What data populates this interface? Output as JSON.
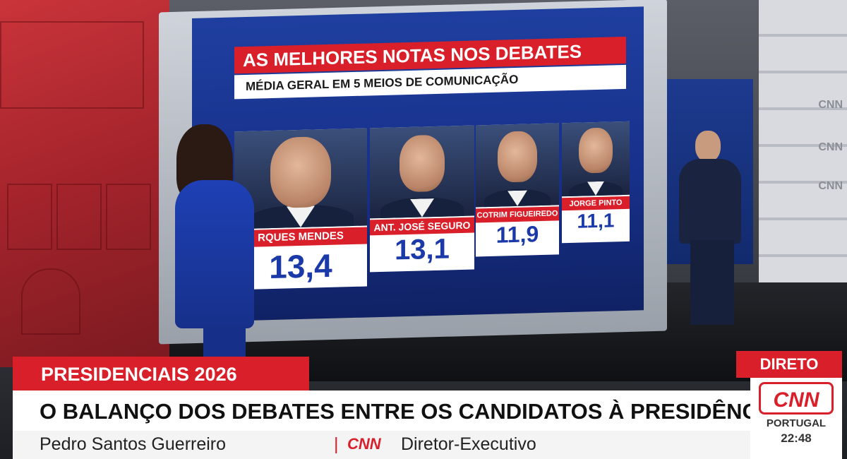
{
  "graphic": {
    "title": "AS MELHORES NOTAS NOS DEBATES",
    "subtitle": "MÉDIA GERAL EM 5 MEIOS DE COMUNICAÇÃO",
    "candidates": [
      {
        "name": "RQUES MENDES",
        "score": "13,4"
      },
      {
        "name": "ANT. JOSÉ SEGURO",
        "score": "13,1"
      },
      {
        "name": "COTRIM FIGUEIREDO",
        "score": "11,9"
      },
      {
        "name": "JORGE PINTO",
        "score": "11,1"
      }
    ]
  },
  "lower_third": {
    "tag": "PRESIDENCIAIS 2026",
    "headline": "O BALANÇO DOS DEBATES ENTRE OS CANDIDATOS À PRESIDÊNCIA",
    "person": "Pedro Santos Guerreiro",
    "separator": "|",
    "logo_text": "CNN",
    "role": "Diretor-Executivo"
  },
  "channel": {
    "live_label": "DIRETO",
    "logo": "CNN",
    "country": "PORTUGAL",
    "time": "22:48"
  },
  "wall_logos": [
    "CNN",
    "CNN",
    "CNN"
  ],
  "colors": {
    "brand_red": "#d9202a",
    "score_blue": "#1b3aa8",
    "screen_blue": "#1f3fa0"
  }
}
